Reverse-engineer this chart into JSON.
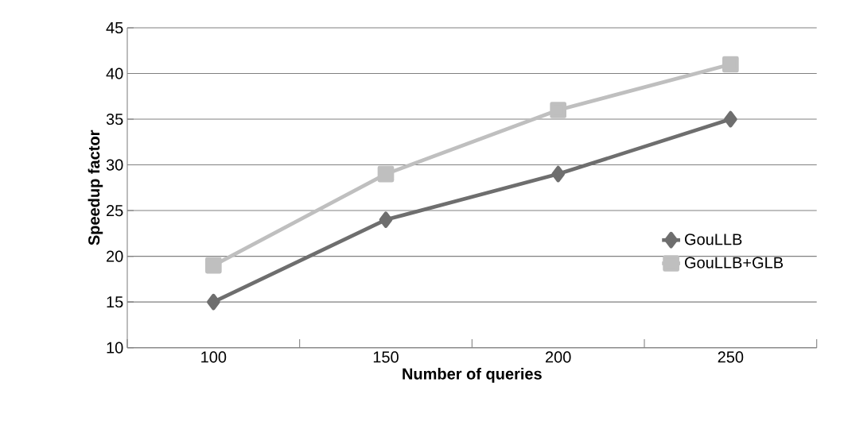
{
  "chart_data": {
    "type": "line",
    "xlabel": "Number of queries",
    "ylabel": "Speedup factor",
    "categories": [
      "100",
      "150",
      "200",
      "250"
    ],
    "series": [
      {
        "name": "GouLLB",
        "color": "#6e6e6e",
        "marker": "diamond",
        "values": [
          15,
          24,
          29,
          35
        ]
      },
      {
        "name": "GouLLB+GLB",
        "color": "#bfbfbf",
        "marker": "square",
        "values": [
          19,
          29,
          36,
          41
        ]
      }
    ],
    "ylim": [
      10,
      45
    ],
    "yticks": [
      10,
      15,
      20,
      25,
      30,
      35,
      40,
      45
    ],
    "grid": "y",
    "legend": "right",
    "line_style": "solid"
  }
}
